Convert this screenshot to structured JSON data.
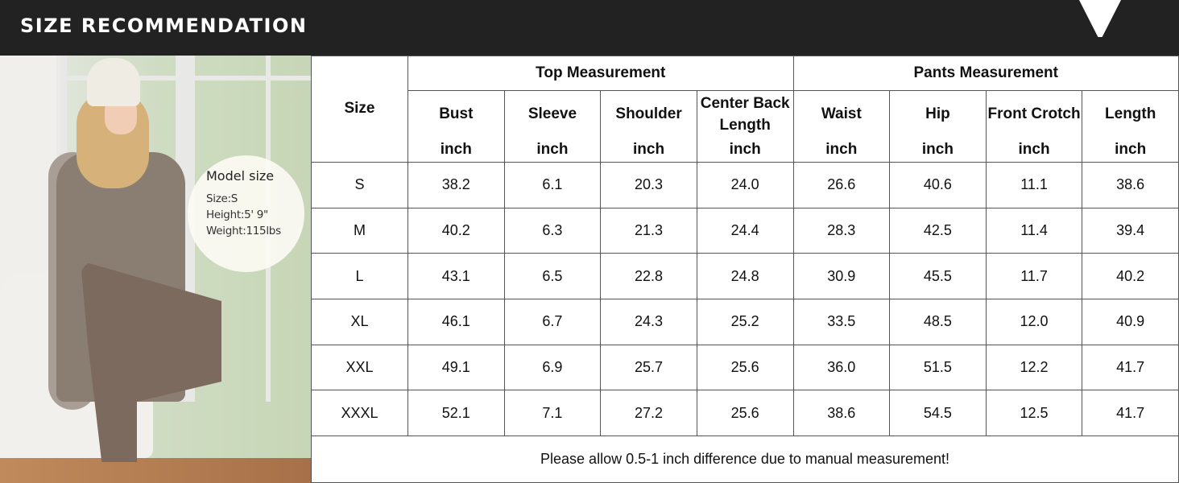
{
  "header": {
    "title": "SIZE RECOMMENDATION"
  },
  "model": {
    "heading": "Model size",
    "size": "Size:S",
    "height": "Height:5' 9\"",
    "weight": "Weight:115lbs"
  },
  "table": {
    "size_header": "Size",
    "groups": [
      "Top Measurement",
      "Pants Measurement"
    ],
    "columns": [
      "Bust",
      "Sleeve",
      "Shoulder",
      "Center Back Length",
      "Waist",
      "Hip",
      "Front Crotch",
      "Length"
    ],
    "unit": "inch",
    "rows": [
      {
        "size": "S",
        "values": [
          "38.2",
          "6.1",
          "20.3",
          "24.0",
          "26.6",
          "40.6",
          "11.1",
          "38.6"
        ]
      },
      {
        "size": "M",
        "values": [
          "40.2",
          "6.3",
          "21.3",
          "24.4",
          "28.3",
          "42.5",
          "11.4",
          "39.4"
        ]
      },
      {
        "size": "L",
        "values": [
          "43.1",
          "6.5",
          "22.8",
          "24.8",
          "30.9",
          "45.5",
          "11.7",
          "40.2"
        ]
      },
      {
        "size": "XL",
        "values": [
          "46.1",
          "6.7",
          "24.3",
          "25.2",
          "33.5",
          "48.5",
          "12.0",
          "40.9"
        ]
      },
      {
        "size": "XXL",
        "values": [
          "49.1",
          "6.9",
          "25.7",
          "25.6",
          "36.0",
          "51.5",
          "12.2",
          "41.7"
        ]
      },
      {
        "size": "XXXL",
        "values": [
          "52.1",
          "7.1",
          "27.2",
          "25.6",
          "38.6",
          "54.5",
          "12.5",
          "41.7"
        ]
      }
    ],
    "note": "Please allow 0.5-1 inch difference due to manual measurement!"
  }
}
